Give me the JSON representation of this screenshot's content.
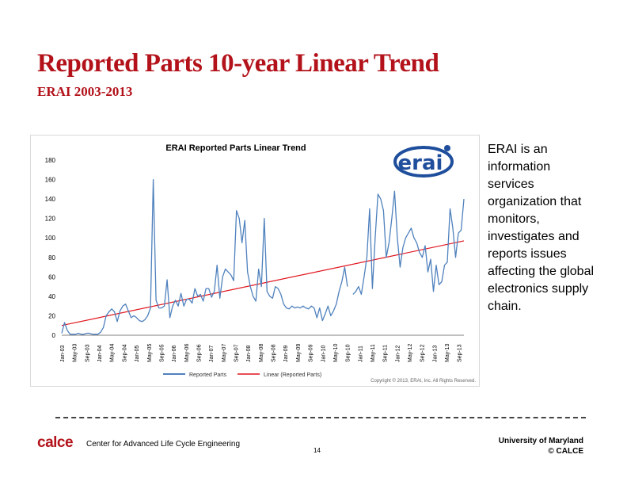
{
  "slide": {
    "title": "Reported Parts 10-year Linear Trend",
    "subtitle": "ERAI 2003-2013",
    "side_text": "ERAI is an information services organization that monitors, investigates and reports issues affecting the global electronics supply chain.",
    "footer_logo": "calce",
    "footer_center": "Center for Advanced Life Cycle Engineering",
    "page_number": "14",
    "footer_right_line1": "University of Maryland",
    "footer_right_line2": "© CALCE"
  },
  "colors": {
    "title": "#b3121a",
    "series_line": "#4f81bd",
    "trend_line": "#e0141e",
    "logo_blue": "#1f4e9c"
  },
  "chart_data": {
    "type": "line",
    "title": "ERAI Reported Parts Linear Trend",
    "ylim": [
      0,
      180
    ],
    "yticks": [
      0,
      20,
      40,
      60,
      80,
      100,
      120,
      140,
      160,
      180
    ],
    "xtick_labels": [
      "Jan-03",
      "May-03",
      "Sep-03",
      "Jan-04",
      "May-04",
      "Sep-04",
      "Jan-05",
      "May-05",
      "Sep-05",
      "Jan-06",
      "May-06",
      "Sep-06",
      "Jan-07",
      "May-07",
      "Sep-07",
      "Jan-08",
      "May-08",
      "Sep-08",
      "Jan-09",
      "May-09",
      "Sep-09",
      "Jan-10",
      "May-10",
      "Sep-10",
      "Jan-11",
      "May-11",
      "Sep-11",
      "Jan-12",
      "May-12",
      "Sep-12",
      "Jan-13",
      "May-13",
      "Sep-13"
    ],
    "logo_text": "erai",
    "copyright": "Copyright © 2013, ERAI, Inc. All Rights Reserved.",
    "series": [
      {
        "name": "Reported Parts",
        "values": [
          2,
          13,
          5,
          1,
          1,
          1,
          2,
          1,
          1,
          2,
          2,
          1,
          1,
          1,
          3,
          8,
          20,
          24,
          27,
          24,
          14,
          25,
          30,
          32,
          25,
          18,
          20,
          18,
          15,
          14,
          16,
          20,
          28,
          160,
          36,
          28,
          28,
          30,
          57,
          18,
          30,
          36,
          30,
          43,
          30,
          37,
          37,
          33,
          48,
          40,
          42,
          35,
          48,
          48,
          39,
          45,
          72,
          38,
          60,
          68,
          65,
          62,
          56,
          128,
          120,
          95,
          118,
          65,
          50,
          40,
          35,
          68,
          50,
          120,
          45,
          40,
          38,
          50,
          48,
          42,
          32,
          28,
          27,
          30,
          28,
          29,
          28,
          30,
          28,
          27,
          30,
          28,
          18,
          28,
          15,
          22,
          30,
          20,
          25,
          32,
          45,
          55,
          70,
          50,
          null,
          42,
          45,
          50,
          42,
          60,
          80,
          130,
          48,
          100,
          145,
          140,
          128,
          80,
          95,
          120,
          148,
          100,
          70,
          90,
          100,
          105,
          110,
          100,
          95,
          85,
          80,
          92,
          65,
          78,
          45,
          72,
          52,
          55,
          72,
          75,
          130,
          110,
          80,
          105,
          108,
          140
        ]
      },
      {
        "name": "Linear (Reported Parts)",
        "values": [
          10,
          97
        ]
      }
    ]
  }
}
